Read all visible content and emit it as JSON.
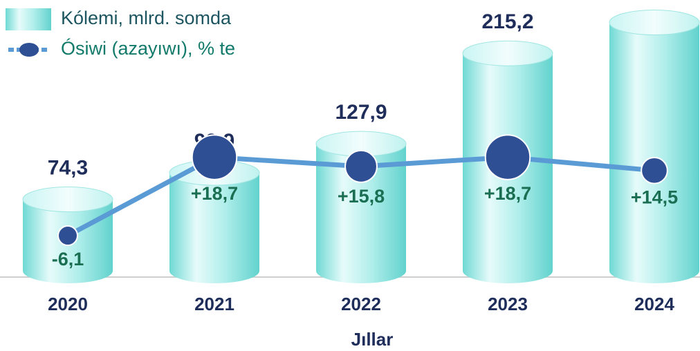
{
  "chart_data": {
    "type": "bar",
    "categories": [
      "2020",
      "2021",
      "2022",
      "2023",
      "2024"
    ],
    "x_label": "Jıllar",
    "ylim": [
      0,
      250
    ],
    "y2lim": [
      -19,
      63
    ],
    "legend": "upper left",
    "series": [
      {
        "name": "Kólemi, mlrd. somda",
        "type": "bar",
        "color": "#9eeae6",
        "values": [
          74.3,
          99.9,
          127.9,
          215.2,
          245
        ],
        "value_labels": [
          "74,3",
          "99,9",
          "127,9",
          "215,2",
          null
        ]
      },
      {
        "name": "Ósiwi (azayıwı), % te",
        "type": "line",
        "axis": "y2",
        "color": "#5b9bd5",
        "marker_color": "#2f4f95",
        "values": [
          -6.1,
          18.7,
          15.8,
          18.7,
          14.5
        ],
        "value_labels": [
          "-6,1",
          "+18,7",
          "+15,8",
          "+18,7",
          "+14,5"
        ]
      }
    ]
  }
}
